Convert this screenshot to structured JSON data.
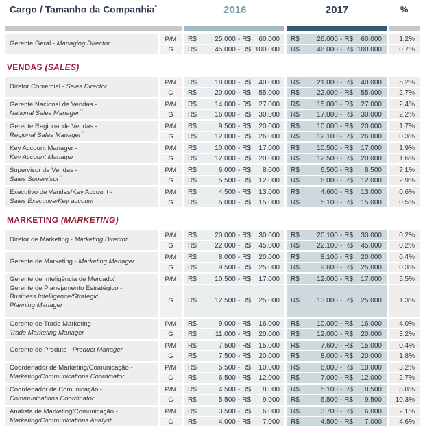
{
  "meta": {
    "currency": "R$"
  },
  "colors": {
    "accent_red": "#9b1b38",
    "bar_gray": "#c8c7c5",
    "bar_2016": "#a4bbc6",
    "bar_2017": "#3a5a70",
    "cell_2016": "#ebeeee",
    "cell_2017": "#cdd9dc",
    "cell_gray": "#efeeec",
    "text_navy": "#2e3640",
    "header_2016": "#7e9cae",
    "header_2017": "#2e4154"
  },
  "header": {
    "job_label": "Cargo / Tamanho da Companhia",
    "job_footnote": "*",
    "y2016": "2016",
    "y2017": "2017",
    "pct": "%"
  },
  "sections": [
    {
      "label_pt": "",
      "label_en": "",
      "rows": [
        {
          "title_lines": [
            [
              {
                "t": "Gerente Geral - "
              },
              {
                "t": "Managing Director",
                "i": 1
              }
            ]
          ],
          "sub": [
            {
              "size": "P/M",
              "r16": [
                "25.000",
                "60.000"
              ],
              "r17": [
                "26.000",
                "60.000"
              ],
              "pct": "1,2%"
            },
            {
              "size": "G",
              "r16": [
                "45.000",
                "100.000"
              ],
              "r17": [
                "46.000",
                "100.000"
              ],
              "pct": "0,7%"
            }
          ]
        }
      ]
    },
    {
      "label_pt": "VENDAS",
      "label_en": "(SALES)",
      "rows": [
        {
          "title_lines": [
            [
              {
                "t": "Diretor Comercial - "
              },
              {
                "t": "Sales Director",
                "i": 1
              }
            ]
          ],
          "sub": [
            {
              "size": "P/M",
              "r16": [
                "18.000",
                "40.000"
              ],
              "r17": [
                "21.000",
                "40.000"
              ],
              "pct": "5,2%"
            },
            {
              "size": "G",
              "r16": [
                "20.000",
                "55.000"
              ],
              "r17": [
                "22.000",
                "55.000"
              ],
              "pct": "2,7%"
            }
          ]
        },
        {
          "title_lines": [
            [
              {
                "t": "Gerente Nacional de Vendas -"
              }
            ],
            [
              {
                "t": "National Sales Manager",
                "i": 1
              },
              {
                "t": "**",
                "i": 1,
                "s": 1
              }
            ]
          ],
          "sub": [
            {
              "size": "P/M",
              "r16": [
                "14.000",
                "27.000"
              ],
              "r17": [
                "15.000",
                "27.000"
              ],
              "pct": "2,4%"
            },
            {
              "size": "G",
              "r16": [
                "16.000",
                "30.000"
              ],
              "r17": [
                "17.000",
                "30.000"
              ],
              "pct": "2,2%"
            }
          ]
        },
        {
          "title_lines": [
            [
              {
                "t": "Gerente Regional de Vendas -"
              }
            ],
            [
              {
                "t": "Regional Sales Manager",
                "i": 1
              },
              {
                "t": "**",
                "i": 1,
                "s": 1
              }
            ]
          ],
          "sub": [
            {
              "size": "P/M",
              "r16": [
                "9.500",
                "20.000"
              ],
              "r17": [
                "10.000",
                "20.000"
              ],
              "pct": "1,7%"
            },
            {
              "size": "G",
              "r16": [
                "12.000",
                "26.000"
              ],
              "r17": [
                "12.100",
                "26.000"
              ],
              "pct": "0,3%"
            }
          ]
        },
        {
          "title_lines": [
            [
              {
                "t": "Key Account Manager -"
              }
            ],
            [
              {
                "t": "Key Account Manager",
                "i": 1
              }
            ]
          ],
          "sub": [
            {
              "size": "P/M",
              "r16": [
                "10.000",
                "17.000"
              ],
              "r17": [
                "10.500",
                "17.000"
              ],
              "pct": "1,9%"
            },
            {
              "size": "G",
              "r16": [
                "12.000",
                "20.000"
              ],
              "r17": [
                "12.500",
                "20.000"
              ],
              "pct": "1,6%"
            }
          ]
        },
        {
          "title_lines": [
            [
              {
                "t": "Supervisor de Vendas -"
              }
            ],
            [
              {
                "t": "Sales Supervisor",
                "i": 1
              },
              {
                "t": "**",
                "i": 1,
                "s": 1
              }
            ]
          ],
          "sub": [
            {
              "size": "P/M",
              "r16": [
                "6.000",
                "8.000"
              ],
              "r17": [
                "6.500",
                "8.500"
              ],
              "pct": "7,1%"
            },
            {
              "size": "G",
              "r16": [
                "5.500",
                "12.000"
              ],
              "r17": [
                "6.000",
                "12.000"
              ],
              "pct": "2,9%"
            }
          ]
        },
        {
          "title_lines": [
            [
              {
                "t": "Executivo de Vendas/Key Account -"
              }
            ],
            [
              {
                "t": "Sales Executive/Key account",
                "i": 1
              }
            ]
          ],
          "sub": [
            {
              "size": "P/M",
              "r16": [
                "4.500",
                "13.000"
              ],
              "r17": [
                "4.600",
                "13.000"
              ],
              "pct": "0,6%"
            },
            {
              "size": "G",
              "r16": [
                "5.000",
                "15.000"
              ],
              "r17": [
                "5.100",
                "15.000"
              ],
              "pct": "0,5%"
            }
          ]
        }
      ]
    },
    {
      "label_pt": "MARKETING",
      "label_en": "(MARKETING)",
      "rows": [
        {
          "title_lines": [
            [
              {
                "t": "Diretor de Marketing - "
              },
              {
                "t": "Marketing Director",
                "i": 1
              }
            ]
          ],
          "sub": [
            {
              "size": "P/M",
              "r16": [
                "20.000",
                "30.000"
              ],
              "r17": [
                "20.100",
                "30.000"
              ],
              "pct": "0,2%"
            },
            {
              "size": "G",
              "r16": [
                "22.000",
                "45.000"
              ],
              "r17": [
                "22.100",
                "45.000"
              ],
              "pct": "0,2%"
            }
          ]
        },
        {
          "title_lines": [
            [
              {
                "t": "Gerente de Marketing - "
              },
              {
                "t": "Marketing Manager",
                "i": 1
              }
            ]
          ],
          "sub": [
            {
              "size": "P/M",
              "r16": [
                "8.000",
                "20.000"
              ],
              "r17": [
                "8.100",
                "20.000"
              ],
              "pct": "0,4%"
            },
            {
              "size": "G",
              "r16": [
                "9.500",
                "25.000"
              ],
              "r17": [
                "9.600",
                "25.000"
              ],
              "pct": "0,3%"
            }
          ]
        },
        {
          "tall": true,
          "title_lines": [
            [
              {
                "t": "Gerente de Inteligência de Mercado/"
              }
            ],
            [
              {
                "t": "Gerente de Planejamento Estratégico -"
              }
            ],
            [
              {
                "t": "Business Intelligence/Strategic",
                "i": 1
              }
            ],
            [
              {
                "t": "Planning Manager",
                "i": 1
              }
            ]
          ],
          "sub": [
            {
              "size": "P/M",
              "r16": [
                "10.500",
                "17.000"
              ],
              "r17": [
                "12.000",
                "17.000"
              ],
              "pct": "5,5%"
            },
            {
              "size": "G",
              "r16": [
                "12.500",
                "25.000"
              ],
              "r17": [
                "13.000",
                "25.000"
              ],
              "pct": "1,3%"
            }
          ]
        },
        {
          "title_lines": [
            [
              {
                "t": "Gerente de Trade Marketing -"
              }
            ],
            [
              {
                "t": "Trade Marketing Manager",
                "i": 1
              }
            ]
          ],
          "sub": [
            {
              "size": "P/M",
              "r16": [
                "9.000",
                "16.000"
              ],
              "r17": [
                "10.000",
                "16.000"
              ],
              "pct": "4,0%"
            },
            {
              "size": "G",
              "r16": [
                "11.000",
                "20.000"
              ],
              "r17": [
                "12.000",
                "20.000"
              ],
              "pct": "3,2%"
            }
          ]
        },
        {
          "title_lines": [
            [
              {
                "t": "Gerente de Produto - "
              },
              {
                "t": "Product Manager",
                "i": 1
              }
            ]
          ],
          "sub": [
            {
              "size": "P/M",
              "r16": [
                "7.500",
                "15.000"
              ],
              "r17": [
                "7.600",
                "15.000"
              ],
              "pct": "0,4%"
            },
            {
              "size": "G",
              "r16": [
                "7.500",
                "20.000"
              ],
              "r17": [
                "8.000",
                "20.000"
              ],
              "pct": "1,8%"
            }
          ]
        },
        {
          "title_lines": [
            [
              {
                "t": "Coordenador de Marketing/Comunicação -"
              }
            ],
            [
              {
                "t": "Marketing/Communications Coordinator",
                "i": 1
              }
            ]
          ],
          "sub": [
            {
              "size": "P/M",
              "r16": [
                "5.500",
                "10.000"
              ],
              "r17": [
                "6.000",
                "10.000"
              ],
              "pct": "3,2%"
            },
            {
              "size": "G",
              "r16": [
                "6.500",
                "12.000"
              ],
              "r17": [
                "7.000",
                "12.000"
              ],
              "pct": "2,7%"
            }
          ]
        },
        {
          "title_lines": [
            [
              {
                "t": "Coordenador de Comunicação -"
              }
            ],
            [
              {
                "t": "Communications Coordinator",
                "i": 1
              }
            ]
          ],
          "sub": [
            {
              "size": "P/M",
              "r16": [
                "4.500",
                "8.000"
              ],
              "r17": [
                "5.100",
                "8.500"
              ],
              "pct": "8,8%"
            },
            {
              "size": "G",
              "r16": [
                "5.500",
                "9.000"
              ],
              "r17": [
                "6.500",
                "9.500"
              ],
              "pct": "10,3%"
            }
          ]
        },
        {
          "title_lines": [
            [
              {
                "t": "Analista de Marketing/Comunicação -"
              }
            ],
            [
              {
                "t": "Marketing/Communications Analyst",
                "i": 1
              }
            ]
          ],
          "sub": [
            {
              "size": "P/M",
              "r16": [
                "3.500",
                "6.000"
              ],
              "r17": [
                "3.700",
                "6.000"
              ],
              "pct": "2,1%"
            },
            {
              "size": "G",
              "r16": [
                "4.000",
                "7.000"
              ],
              "r17": [
                "4.500",
                "7.000"
              ],
              "pct": "4,6%"
            }
          ]
        }
      ]
    }
  ]
}
